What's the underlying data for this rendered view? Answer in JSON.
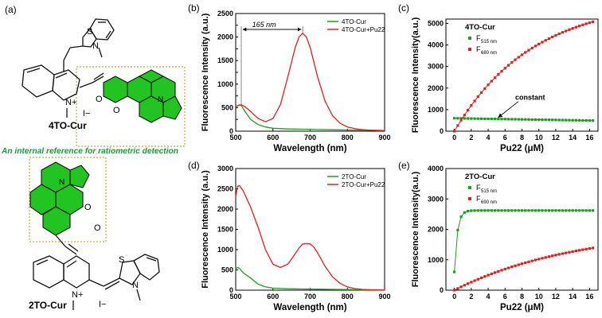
{
  "panel_labels": {
    "a": "(a)",
    "b": "(b)",
    "c": "(c)",
    "d": "(d)",
    "e": "(e)"
  },
  "structures": {
    "top_name": "4TO-Cur",
    "bottom_name": "2TO-Cur",
    "caption": "An internal reference for ratiometric detection",
    "atoms": {
      "S": "S",
      "N": "N",
      "N_plus": "N+",
      "I_minus": "I−",
      "O": "O",
      "O_carbonyl": "O"
    }
  },
  "colors": {
    "green": "#1f9e1f",
    "red": "#e02020",
    "struct_green": "#22c422",
    "caption_green": "#1a9a3a",
    "box": "#b8b040"
  },
  "chart_data": [
    {
      "id": "b",
      "type": "line",
      "xlabel": "Wavelength (nm)",
      "ylabel": "Fluorescence Intensity (a.u.)",
      "xlim": [
        500,
        900
      ],
      "ylim": [
        0,
        2500
      ],
      "xticks": [
        500,
        600,
        700,
        800,
        900
      ],
      "yticks": [
        0,
        250,
        500,
        750,
        1000,
        1250,
        1500,
        1750,
        2000,
        2250,
        2500
      ],
      "yticklabels": [
        "0",
        "",
        "500",
        "",
        "1000",
        "",
        "1500",
        "",
        "2000",
        "",
        "2500"
      ],
      "legend": "top-right",
      "annotation": {
        "text": "165 nm",
        "from_x": 515,
        "to_x": 680
      },
      "series": [
        {
          "name": "4TO-Cur",
          "color": "green",
          "x": [
            500,
            510,
            515,
            525,
            540,
            560,
            580,
            600,
            640,
            680,
            720,
            760,
            800,
            840,
            880,
            900
          ],
          "y": [
            520,
            560,
            545,
            420,
            250,
            140,
            90,
            62,
            48,
            42,
            36,
            30,
            26,
            22,
            18,
            16
          ]
        },
        {
          "name": "4TO-Cur+Pu22",
          "color": "red",
          "x": [
            500,
            510,
            515,
            525,
            540,
            560,
            580,
            600,
            620,
            640,
            660,
            670,
            680,
            690,
            700,
            720,
            740,
            760,
            780,
            800,
            830,
            860,
            900
          ],
          "y": [
            520,
            555,
            560,
            520,
            420,
            270,
            200,
            270,
            560,
            1150,
            1780,
            2000,
            2080,
            2000,
            1780,
            1150,
            640,
            330,
            170,
            90,
            40,
            20,
            10
          ]
        }
      ]
    },
    {
      "id": "c",
      "type": "scatter",
      "xlabel": "Pu22 (μM)",
      "ylabel": "Fluorescence Intensity(a.u.)",
      "xlim": [
        -1,
        17
      ],
      "ylim": [
        0,
        5200
      ],
      "xticks": [
        0,
        2,
        4,
        6,
        8,
        10,
        12,
        14,
        16
      ],
      "yticks": [
        0,
        1000,
        2000,
        3000,
        4000,
        5000
      ],
      "title": "4TO-Cur",
      "legend": [
        {
          "series": "green",
          "label": "F",
          "sub": "515 nm"
        },
        {
          "series": "red",
          "label": "F",
          "sub": "680 nm"
        }
      ],
      "annotation": {
        "text": "constant"
      },
      "green_points": {
        "x_start": 0,
        "x_end": 16.6,
        "step": 0.4,
        "y_start": 600,
        "y_end": 490
      },
      "red_curve": {
        "x_start": 0,
        "x_end": 16.6,
        "step": 0.4,
        "model": "y = A*(1-exp(-x/k))",
        "A": 6100,
        "k": 9.2
      }
    },
    {
      "id": "d",
      "type": "line",
      "xlabel": "Wavelength (nm)",
      "ylabel": "Fluorescence Intensity (a.u.)",
      "xlim": [
        500,
        900
      ],
      "ylim": [
        0,
        3000
      ],
      "xticks": [
        500,
        600,
        700,
        800,
        900
      ],
      "yticks": [
        0,
        500,
        1000,
        1500,
        2000,
        2500,
        3000
      ],
      "legend": "top-right",
      "series": [
        {
          "name": "2TO-Cur",
          "color": "green",
          "x": [
            500,
            505,
            510,
            520,
            540,
            560,
            580,
            600,
            640,
            680,
            720,
            760,
            800,
            850,
            900
          ],
          "y": [
            520,
            560,
            540,
            430,
            300,
            150,
            80,
            50,
            35,
            30,
            25,
            20,
            15,
            10,
            8
          ]
        },
        {
          "name": "2TO-Cur+Pu22",
          "color": "red",
          "x": [
            500,
            505,
            510,
            520,
            540,
            560,
            580,
            600,
            620,
            640,
            660,
            670,
            680,
            690,
            700,
            710,
            720,
            740,
            760,
            780,
            800,
            820,
            840,
            860,
            900
          ],
          "y": [
            2300,
            2560,
            2580,
            2450,
            2050,
            1550,
            1000,
            640,
            560,
            640,
            900,
            1040,
            1140,
            1150,
            1140,
            1060,
            920,
            590,
            330,
            170,
            80,
            40,
            20,
            12,
            8
          ]
        }
      ]
    },
    {
      "id": "e",
      "type": "scatter",
      "xlabel": "Pu22 (μM)",
      "ylabel": "Fluorescence Intensity(a.u.)",
      "xlim": [
        -1,
        17
      ],
      "ylim": [
        0,
        4000
      ],
      "xticks": [
        0,
        2,
        4,
        6,
        8,
        10,
        12,
        14,
        16
      ],
      "yticks": [
        0,
        1000,
        2000,
        3000,
        4000
      ],
      "title": "2TO-Cur",
      "legend": [
        {
          "series": "green",
          "label": "F",
          "sub": "515 nm"
        },
        {
          "series": "red",
          "label": "F",
          "sub": "690 nm"
        }
      ],
      "green_curve": {
        "x_start": 0,
        "x_end": 16.6,
        "step": 0.4,
        "model": "saturating",
        "start": 600,
        "plateau": 2620,
        "k": 0.35
      },
      "red_curve": {
        "x_start": 0,
        "x_end": 16.6,
        "step": 0.4,
        "model": "y = A*(1-exp(-x/k))",
        "A": 2050,
        "k": 14.5
      }
    }
  ]
}
